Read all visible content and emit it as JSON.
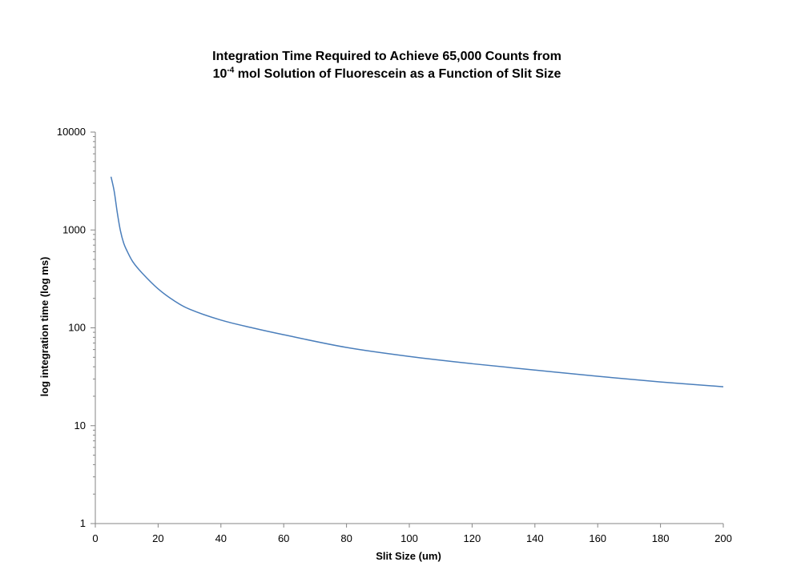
{
  "chart_data": {
    "type": "line",
    "title_line1": "Integration Time Required to Achieve 65,000 Counts from",
    "title_line2_prefix": "10",
    "title_line2_superscript": "-4",
    "title_line2_suffix": " mol Solution of Fluorescein as a Function of Slit Size",
    "xlabel": "Slit Size (um)",
    "ylabel": "log integration time (log ms)",
    "xlim": [
      0,
      200
    ],
    "ylim": [
      1,
      10000
    ],
    "y_scale": "log",
    "x_ticks": [
      "0",
      "20",
      "40",
      "60",
      "80",
      "100",
      "120",
      "140",
      "160",
      "180",
      "200"
    ],
    "y_ticks": [
      "1",
      "10",
      "100",
      "1000",
      "10000"
    ],
    "grid": false,
    "legend": "none",
    "series_color": "#4a7ebb",
    "x": [
      5,
      6,
      7,
      8,
      9,
      10,
      12,
      15,
      20,
      25,
      30,
      40,
      50,
      60,
      80,
      100,
      120,
      140,
      160,
      180,
      200
    ],
    "y": [
      3500,
      2500,
      1500,
      980,
      740,
      620,
      470,
      360,
      250,
      190,
      155,
      120,
      100,
      85,
      63,
      51,
      43,
      37,
      32,
      28,
      25
    ]
  }
}
